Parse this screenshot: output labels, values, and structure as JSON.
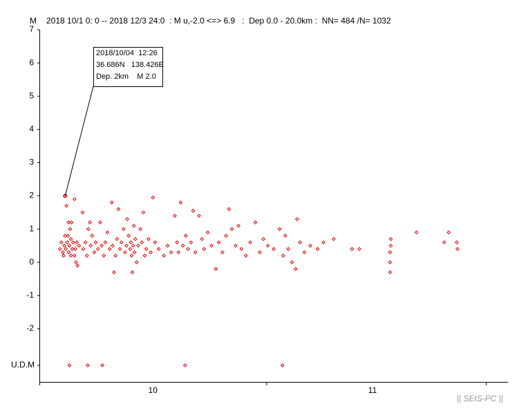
{
  "chart_data": {
    "type": "scatter",
    "ylabel": "M",
    "title": "2018 10/1 0: 0 -- 2018 12/3 24:0  : M u,-2.0 <=> 6.9   :  Dep 0.0 - 20.0km :  NN= 484 /N= 1032",
    "xlim": [
      0,
      64
    ],
    "xticks": [
      0,
      31,
      61
    ],
    "month_labels": [
      {
        "value": 15.5,
        "label": "10"
      },
      {
        "value": 45.5,
        "label": "11"
      }
    ],
    "ylim": [
      -3.6,
      7
    ],
    "yticks": [
      7,
      6,
      5,
      4,
      3,
      2,
      1,
      0,
      -1,
      -2,
      {
        "value": -3.1,
        "label": "U.D.M"
      }
    ],
    "series": [
      {
        "color": "#e00000",
        "x": [
          2.8,
          3.0,
          3.2,
          3.3,
          3.4,
          3.5,
          3.52,
          3.6,
          3.7,
          3.8,
          3.9,
          4.0,
          4.0,
          4.1,
          4.2,
          4.3,
          4.3,
          4.4,
          4.5,
          4.6,
          4.8,
          4.8,
          4.9,
          5.0,
          5.1,
          5.2,
          5.4,
          5.9,
          6.0,
          6.3,
          6.5,
          6.7,
          6.9,
          7.0,
          7.2,
          7.5,
          7.7,
          8.0,
          8.3,
          8.5,
          8.8,
          9.0,
          9.3,
          9.6,
          9.9,
          10.0,
          10.2,
          10.4,
          10.6,
          10.8,
          11.0,
          11.2,
          11.5,
          11.7,
          11.9,
          12.0,
          12.2,
          12.4,
          12.5,
          12.6,
          12.7,
          12.8,
          12.9,
          13.0,
          13.1,
          13.3,
          13.5,
          13.8,
          14.0,
          14.2,
          14.4,
          14.6,
          14.9,
          15.2,
          15.5,
          15.8,
          16.3,
          17.0,
          17.5,
          18.0,
          18.5,
          18.8,
          19.0,
          19.3,
          19.6,
          20.0,
          20.3,
          20.7,
          21.0,
          21.3,
          21.8,
          22.2,
          22.5,
          23.0,
          23.5,
          24.1,
          24.5,
          25.0,
          25.5,
          25.9,
          26.3,
          26.8,
          27.2,
          27.6,
          28.2,
          28.8,
          29.5,
          30.1,
          30.6,
          31.2,
          32.0,
          32.8,
          33.3,
          33.6,
          34.0,
          34.5,
          35.0,
          35.2,
          35.6,
          36.2,
          37.0,
          38.0,
          38.8,
          40.2,
          42.7,
          43.7,
          47.9,
          47.9,
          47.9,
          48.0,
          48.0,
          51.5,
          55.3,
          55.9,
          57.1,
          57.0,
          4.1,
          6.6,
          8.6,
          19.9,
          33.2
        ],
        "y": [
          0.4,
          0.6,
          0.3,
          0.2,
          0.5,
          0.8,
          2.0,
          0.4,
          1.7,
          0.6,
          0.8,
          1.2,
          0.3,
          0.5,
          1.0,
          0.2,
          0.7,
          1.2,
          0.4,
          0.6,
          1.9,
          0.2,
          0.4,
          0.0,
          0.6,
          -0.1,
          0.5,
          1.5,
          0.4,
          0.6,
          0.2,
          1.0,
          1.2,
          0.5,
          0.8,
          0.3,
          0.6,
          0.4,
          1.2,
          0.5,
          0.2,
          0.6,
          0.9,
          0.4,
          1.8,
          0.5,
          -0.3,
          0.2,
          0.7,
          1.6,
          0.4,
          0.6,
          1.0,
          0.3,
          0.5,
          1.3,
          0.8,
          0.4,
          0.6,
          0.2,
          -0.3,
          0.5,
          1.1,
          0.3,
          0.7,
          0.0,
          0.5,
          1.0,
          0.6,
          1.5,
          0.2,
          0.4,
          0.7,
          0.3,
          1.95,
          0.6,
          0.4,
          0.2,
          0.5,
          0.3,
          1.4,
          0.6,
          0.3,
          1.8,
          0.5,
          0.8,
          0.4,
          0.6,
          1.55,
          0.3,
          1.4,
          0.7,
          0.4,
          0.9,
          0.5,
          -0.2,
          0.6,
          0.3,
          0.8,
          1.6,
          1.0,
          0.5,
          1.1,
          0.4,
          0.2,
          0.6,
          1.2,
          0.3,
          0.7,
          0.5,
          0.4,
          1.0,
          0.2,
          0.8,
          0.4,
          0.0,
          -0.2,
          1.3,
          0.6,
          0.3,
          0.5,
          0.4,
          0.6,
          0.7,
          0.4,
          0.4,
          -0.3,
          0.0,
          0.3,
          0.5,
          0.7,
          0.9,
          0.6,
          0.9,
          0.4,
          0.6,
          -3.1,
          -3.1,
          -3.1,
          -3.1,
          -3.1
        ]
      }
    ],
    "annotation": {
      "x": 3.52,
      "y": 2.0,
      "lines": [
        "2018/10/04  12:26",
        "36.686N   138.426E",
        "Dep. 2km    M 2.0"
      ]
    },
    "footer": "|| SEIS-PC ||"
  }
}
